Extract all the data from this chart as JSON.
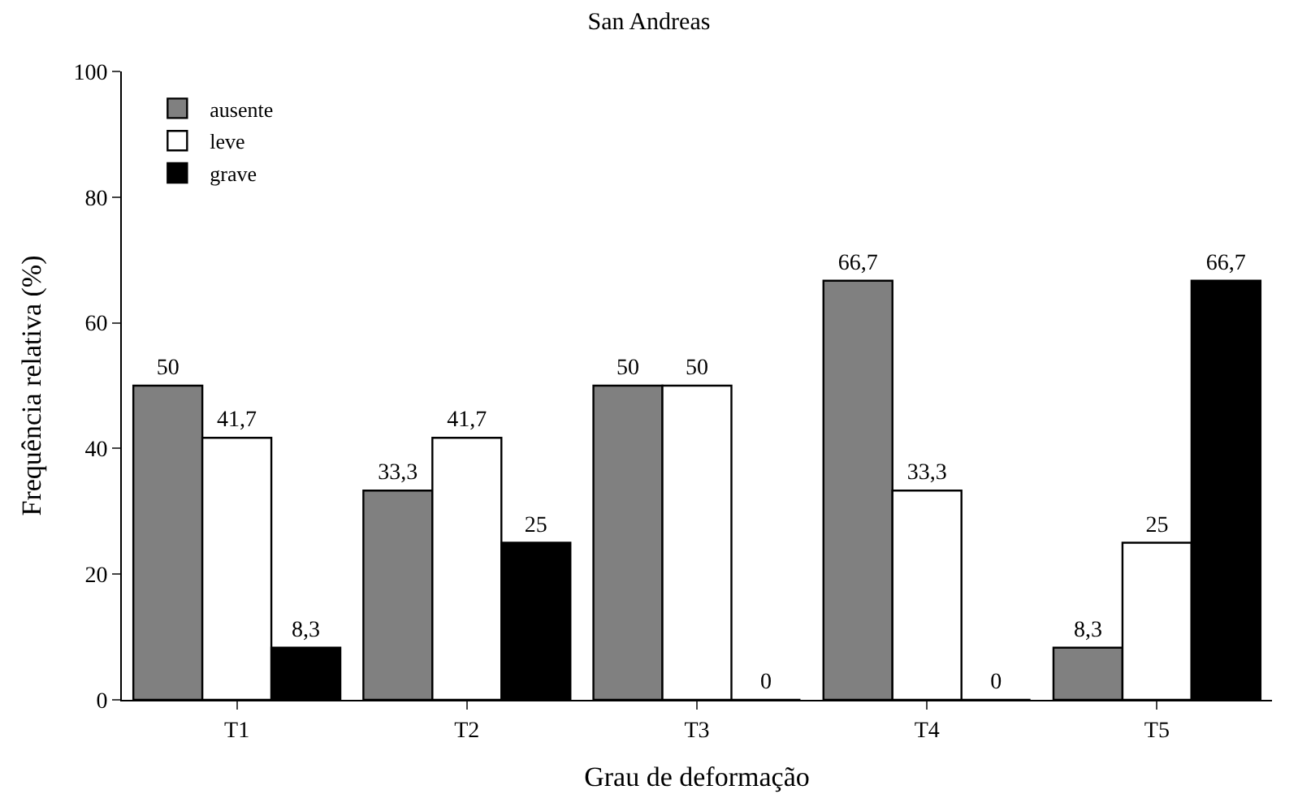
{
  "chart_data": {
    "type": "bar",
    "title": "San Andreas",
    "xlabel": "Grau de deformação",
    "ylabel": "Frequência relativa (%)",
    "categories": [
      "T1",
      "T2",
      "T3",
      "T4",
      "T5"
    ],
    "series": [
      {
        "name": "ausente",
        "color": "#808080",
        "values": [
          50,
          33.3,
          50,
          66.7,
          8.3
        ],
        "value_labels": [
          "50",
          "33,3",
          "50",
          "66,7",
          "8,3"
        ]
      },
      {
        "name": "leve",
        "color": "#ffffff",
        "values": [
          41.7,
          41.7,
          50,
          33.3,
          25
        ],
        "value_labels": [
          "41,7",
          "41,7",
          "50",
          "33,3",
          "25"
        ]
      },
      {
        "name": "grave",
        "color": "#000000",
        "values": [
          8.3,
          25,
          0,
          0,
          66.7
        ],
        "value_labels": [
          "8,3",
          "25",
          "0",
          "0",
          "66,7"
        ]
      }
    ],
    "ylim": [
      0,
      100
    ],
    "yticks": [
      0,
      20,
      40,
      60,
      80,
      100
    ],
    "legend": "top left"
  }
}
